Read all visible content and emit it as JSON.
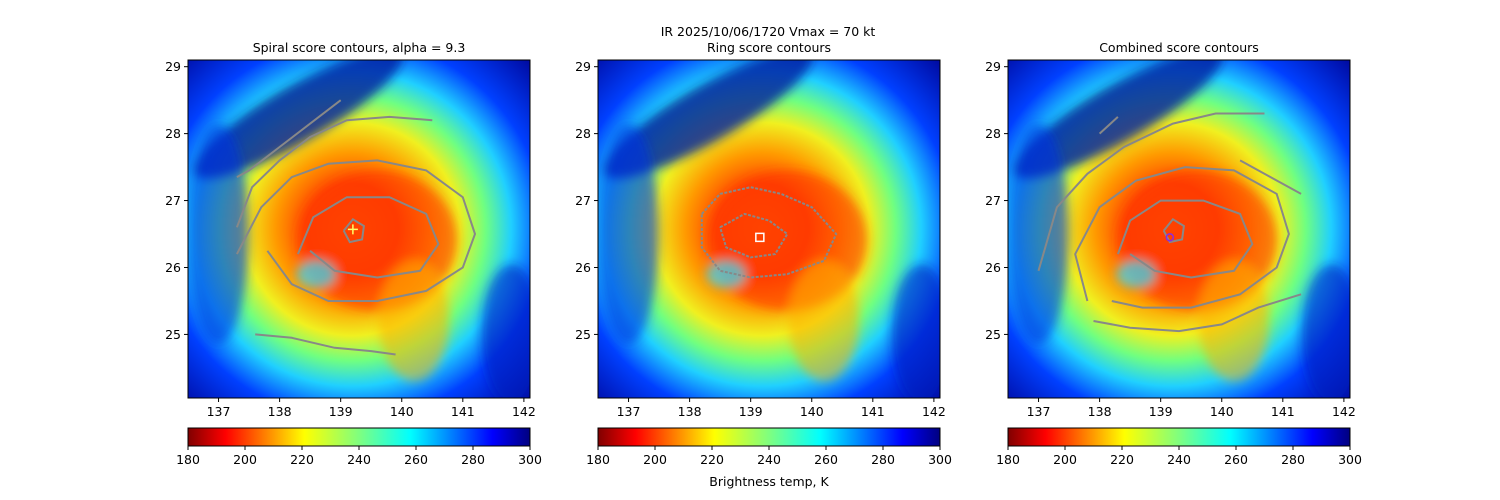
{
  "suptitle": "IR  2025/10/06/1720    Vmax = 70 kt",
  "colormap": "jet_r",
  "chart_data": [
    {
      "type": "heatmap",
      "title": "Spiral score contours, alpha =  9.3",
      "x_ticks": [
        137,
        138,
        139,
        140,
        141,
        142
      ],
      "y_ticks": [
        25,
        26,
        27,
        28,
        29
      ],
      "xlim": [
        136.5,
        142.1
      ],
      "ylim": [
        24.05,
        29.1
      ],
      "colorbar": {
        "ticks": [
          180,
          200,
          220,
          240,
          260,
          280,
          300
        ],
        "range": [
          180,
          300
        ],
        "label": ""
      },
      "center_marker": {
        "shape": "plus",
        "color": "#ffff66",
        "lon": 139.2,
        "lat": 26.57
      },
      "contours": [
        [
          [
            137.3,
            26.6
          ],
          [
            137.55,
            27.2
          ],
          [
            138.0,
            27.6
          ],
          [
            138.5,
            27.95
          ],
          [
            139.1,
            28.2
          ],
          [
            139.8,
            28.25
          ],
          [
            140.5,
            28.2
          ]
        ],
        [
          [
            137.3,
            26.2
          ],
          [
            137.7,
            26.9
          ],
          [
            138.2,
            27.35
          ],
          [
            138.8,
            27.55
          ],
          [
            139.6,
            27.6
          ],
          [
            140.4,
            27.45
          ],
          [
            141.0,
            27.05
          ],
          [
            141.2,
            26.5
          ],
          [
            141.0,
            26.0
          ],
          [
            140.4,
            25.65
          ],
          [
            139.6,
            25.5
          ],
          [
            138.8,
            25.5
          ],
          [
            138.2,
            25.75
          ],
          [
            137.8,
            26.25
          ]
        ],
        [
          [
            138.3,
            26.2
          ],
          [
            138.55,
            26.75
          ],
          [
            139.1,
            27.05
          ],
          [
            139.8,
            27.05
          ],
          [
            140.4,
            26.8
          ],
          [
            140.6,
            26.35
          ],
          [
            140.3,
            25.95
          ],
          [
            139.6,
            25.85
          ],
          [
            138.9,
            25.95
          ],
          [
            138.5,
            26.25
          ]
        ],
        [
          [
            139.05,
            26.55
          ],
          [
            139.2,
            26.72
          ],
          [
            139.38,
            26.62
          ],
          [
            139.35,
            26.42
          ],
          [
            139.15,
            26.38
          ],
          [
            139.05,
            26.55
          ]
        ],
        [
          [
            137.3,
            27.35
          ],
          [
            137.5,
            27.45
          ],
          [
            138.0,
            27.8
          ],
          [
            139.0,
            28.5
          ]
        ],
        [
          [
            137.6,
            25.0
          ],
          [
            138.2,
            24.95
          ],
          [
            138.9,
            24.8
          ],
          [
            139.5,
            24.75
          ],
          [
            139.9,
            24.7
          ]
        ]
      ]
    },
    {
      "type": "heatmap",
      "title": "Ring score contours",
      "x_ticks": [
        137,
        138,
        139,
        140,
        141,
        142
      ],
      "y_ticks": [
        25,
        26,
        27,
        28,
        29
      ],
      "xlim": [
        136.5,
        142.1
      ],
      "ylim": [
        24.05,
        29.1
      ],
      "colorbar": {
        "ticks": [
          180,
          200,
          220,
          240,
          260,
          280,
          300
        ],
        "range": [
          180,
          300
        ],
        "label": "Brightness temp, K"
      },
      "center_marker": {
        "shape": "square",
        "color": "#ffffff",
        "lon": 139.15,
        "lat": 26.45
      },
      "contours": [
        [
          [
            138.2,
            26.8
          ],
          [
            138.5,
            27.1
          ],
          [
            139.0,
            27.2
          ],
          [
            139.5,
            27.1
          ],
          [
            140.0,
            26.9
          ],
          [
            140.4,
            26.5
          ],
          [
            140.2,
            26.1
          ],
          [
            139.6,
            25.9
          ],
          [
            139.0,
            25.85
          ],
          [
            138.5,
            25.95
          ],
          [
            138.2,
            26.3
          ],
          [
            138.2,
            26.8
          ]
        ],
        [
          [
            138.5,
            26.6
          ],
          [
            138.9,
            26.8
          ],
          [
            139.3,
            26.7
          ],
          [
            139.6,
            26.5
          ],
          [
            139.4,
            26.2
          ],
          [
            139.0,
            26.15
          ],
          [
            138.6,
            26.3
          ],
          [
            138.5,
            26.6
          ]
        ]
      ]
    },
    {
      "type": "heatmap",
      "title": "Combined score contours",
      "x_ticks": [
        137,
        138,
        139,
        140,
        141,
        142
      ],
      "y_ticks": [
        25,
        26,
        27,
        28,
        29
      ],
      "xlim": [
        136.5,
        142.1
      ],
      "ylim": [
        24.05,
        29.1
      ],
      "colorbar": {
        "ticks": [
          180,
          200,
          220,
          240,
          260,
          280,
          300
        ],
        "range": [
          180,
          300
        ],
        "label": ""
      },
      "center_marker": {
        "shape": "circle",
        "color": "#8a2be2",
        "lon": 139.15,
        "lat": 26.45
      },
      "contours": [
        [
          [
            137.0,
            25.95
          ],
          [
            137.3,
            26.9
          ],
          [
            137.8,
            27.4
          ],
          [
            138.4,
            27.8
          ],
          [
            139.2,
            28.15
          ],
          [
            139.9,
            28.3
          ],
          [
            140.7,
            28.3
          ]
        ],
        [
          [
            137.8,
            25.5
          ],
          [
            137.6,
            26.2
          ],
          [
            138.0,
            26.9
          ],
          [
            138.6,
            27.3
          ],
          [
            139.4,
            27.5
          ],
          [
            140.2,
            27.45
          ],
          [
            140.9,
            27.1
          ],
          [
            141.1,
            26.5
          ],
          [
            140.9,
            26.0
          ],
          [
            140.3,
            25.6
          ],
          [
            139.5,
            25.4
          ],
          [
            138.7,
            25.4
          ],
          [
            138.2,
            25.5
          ]
        ],
        [
          [
            138.3,
            26.2
          ],
          [
            138.5,
            26.7
          ],
          [
            139.0,
            27.0
          ],
          [
            139.7,
            27.0
          ],
          [
            140.3,
            26.8
          ],
          [
            140.5,
            26.35
          ],
          [
            140.2,
            25.95
          ],
          [
            139.5,
            25.85
          ],
          [
            138.9,
            25.95
          ],
          [
            138.5,
            26.2
          ]
        ],
        [
          [
            139.05,
            26.55
          ],
          [
            139.2,
            26.72
          ],
          [
            139.38,
            26.62
          ],
          [
            139.35,
            26.42
          ],
          [
            139.15,
            26.38
          ],
          [
            139.05,
            26.55
          ]
        ],
        [
          [
            137.9,
            25.2
          ],
          [
            138.5,
            25.1
          ],
          [
            139.3,
            25.05
          ],
          [
            140.0,
            25.15
          ],
          [
            140.6,
            25.4
          ],
          [
            141.3,
            25.6
          ]
        ],
        [
          [
            140.3,
            27.6
          ],
          [
            140.9,
            27.3
          ],
          [
            141.3,
            27.1
          ]
        ],
        [
          [
            138.0,
            28.0
          ],
          [
            138.3,
            28.25
          ]
        ]
      ]
    }
  ]
}
